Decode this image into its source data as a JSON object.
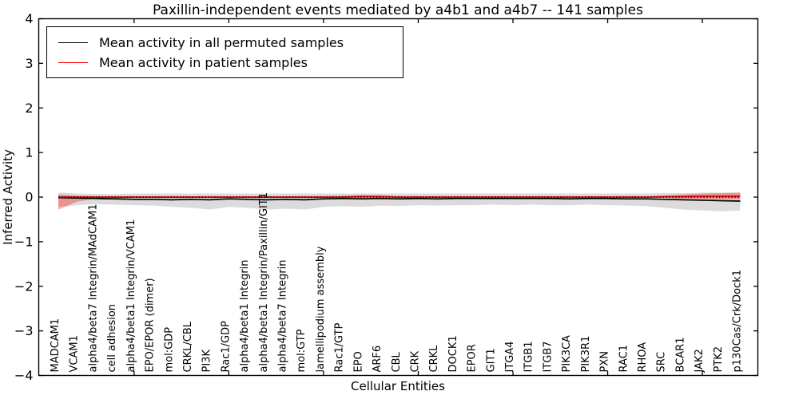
{
  "chart_data": {
    "type": "line",
    "title": "Paxillin-independent events mediated by a4b1 and a4b7 -- 141 samples",
    "xlabel": "Cellular Entities",
    "ylabel": "Inferred Activity",
    "ylim": [
      -4,
      4
    ],
    "yticks": [
      -4,
      -3,
      -2,
      -1,
      0,
      1,
      2,
      3,
      4
    ],
    "grid": false,
    "legend_position": "upper left",
    "zero_line": {
      "value": 0,
      "style": "dotted",
      "color": "#000000"
    },
    "xtick_indices": [
      4,
      9,
      14,
      19,
      24,
      29,
      34
    ],
    "categories": [
      "MADCAM1",
      "VCAM1",
      "alpha4/beta7 Integrin/MAdCAM1",
      "cell adhesion",
      "alpha4/beta1 Integrin/VCAM1",
      "EPO/EPOR (dimer)",
      "mol:GDP",
      "CRKL/CBL",
      "PI3K",
      "Rac1/GDP",
      "alpha4/beta1 Integrin",
      "alpha4/beta1 Integrin/Paxillin/GIT1",
      "alpha4/beta7 Integrin",
      "mol:GTP",
      "lamellipodium assembly",
      "Rac1/GTP",
      "EPO",
      "ARF6",
      "CBL",
      "CRK",
      "CRKL",
      "DOCK1",
      "EPOR",
      "GIT1",
      "ITGA4",
      "ITGB1",
      "ITGB7",
      "PIK3CA",
      "PIK3R1",
      "PXN",
      "RAC1",
      "RHOA",
      "SRC",
      "BCAR1",
      "JAK2",
      "PTK2",
      "p130Cas/Crk/Dock1"
    ],
    "series": [
      {
        "name": "Mean activity in all permuted samples",
        "color": "#000000",
        "band_fill": "rgba(0,0,0,0.14)",
        "values": [
          -0.01,
          -0.02,
          -0.03,
          -0.04,
          -0.05,
          -0.05,
          -0.06,
          -0.05,
          -0.06,
          -0.04,
          -0.05,
          -0.06,
          -0.05,
          -0.06,
          -0.04,
          -0.03,
          -0.04,
          -0.03,
          -0.04,
          -0.03,
          -0.04,
          -0.03,
          -0.03,
          -0.03,
          -0.03,
          -0.03,
          -0.03,
          -0.04,
          -0.03,
          -0.03,
          -0.04,
          -0.04,
          -0.05,
          -0.06,
          -0.07,
          -0.08,
          -0.09
        ],
        "band_upper": [
          0.1,
          0.08,
          0.07,
          0.07,
          0.08,
          0.08,
          0.08,
          0.08,
          0.08,
          0.08,
          0.08,
          0.08,
          0.08,
          0.08,
          0.08,
          0.08,
          0.08,
          0.08,
          0.08,
          0.08,
          0.08,
          0.08,
          0.08,
          0.08,
          0.08,
          0.08,
          0.08,
          0.08,
          0.08,
          0.08,
          0.08,
          0.08,
          0.09,
          0.09,
          0.1,
          0.1,
          0.1
        ],
        "band_lower": [
          -0.22,
          -0.18,
          -0.16,
          -0.17,
          -0.18,
          -0.19,
          -0.22,
          -0.24,
          -0.28,
          -0.22,
          -0.24,
          -0.28,
          -0.26,
          -0.28,
          -0.22,
          -0.2,
          -0.22,
          -0.19,
          -0.2,
          -0.18,
          -0.19,
          -0.18,
          -0.18,
          -0.17,
          -0.18,
          -0.17,
          -0.18,
          -0.18,
          -0.17,
          -0.18,
          -0.19,
          -0.2,
          -0.24,
          -0.28,
          -0.3,
          -0.32,
          -0.3
        ]
      },
      {
        "name": "Mean activity in patient samples",
        "color": "#ff0000",
        "band_fill": "rgba(255,0,0,0.32)",
        "values": [
          0.0,
          0.0,
          0.0,
          0.0,
          0.0,
          0.0,
          0.0,
          0.0,
          0.0,
          0.0,
          0.0,
          0.0,
          0.0,
          0.0,
          0.0,
          0.0,
          0.01,
          0.01,
          0.0,
          0.0,
          0.0,
          0.0,
          0.0,
          0.0,
          0.0,
          0.0,
          0.0,
          0.0,
          0.0,
          0.0,
          0.0,
          0.0,
          0.01,
          0.01,
          0.02,
          0.02,
          0.02
        ],
        "band_upper": [
          0.06,
          0.03,
          0.02,
          0.02,
          0.02,
          0.02,
          0.02,
          0.02,
          0.02,
          0.02,
          0.02,
          0.02,
          0.02,
          0.02,
          0.02,
          0.03,
          0.05,
          0.04,
          0.02,
          0.02,
          0.02,
          0.02,
          0.02,
          0.02,
          0.02,
          0.02,
          0.02,
          0.02,
          0.02,
          0.02,
          0.02,
          0.02,
          0.03,
          0.06,
          0.08,
          0.09,
          0.1
        ],
        "band_lower": [
          -0.28,
          -0.1,
          -0.03,
          -0.03,
          -0.02,
          -0.02,
          -0.02,
          -0.02,
          -0.02,
          -0.02,
          -0.02,
          -0.02,
          -0.02,
          -0.02,
          -0.02,
          -0.02,
          -0.03,
          -0.02,
          -0.02,
          -0.02,
          -0.02,
          -0.02,
          -0.02,
          -0.02,
          -0.02,
          -0.02,
          -0.02,
          -0.02,
          -0.02,
          -0.02,
          -0.02,
          -0.02,
          -0.02,
          -0.03,
          -0.04,
          -0.05,
          -0.05
        ]
      }
    ]
  }
}
